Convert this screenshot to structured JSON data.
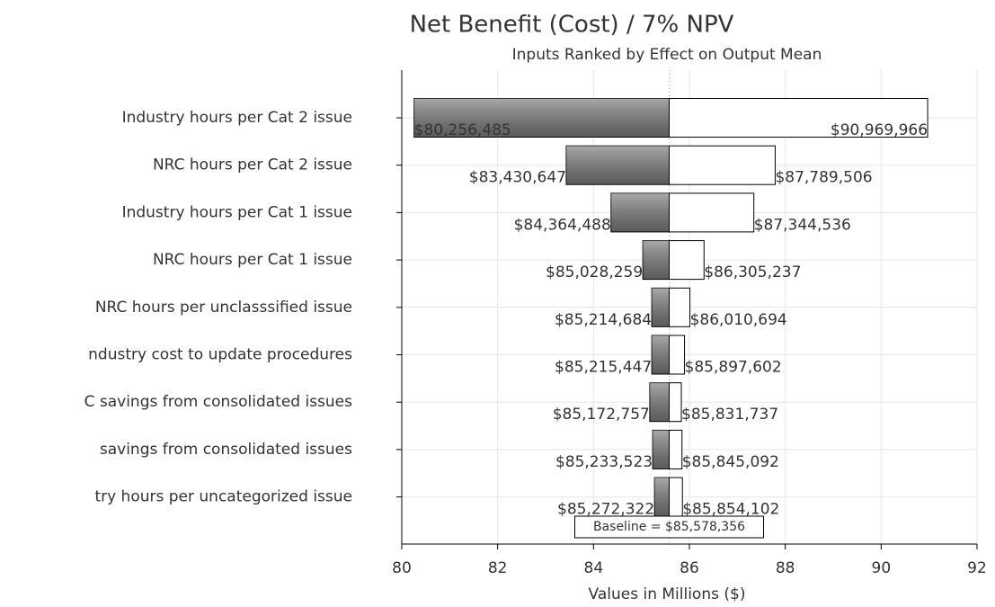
{
  "chart_data": {
    "type": "tornado",
    "title": "Net Benefit (Cost) / 7% NPV",
    "subtitle": "Inputs Ranked by Effect on Output Mean",
    "x_label": "Values in Millions ($)",
    "categories": [
      "Industry hours per Cat 2 issue",
      "NRC hours per Cat 2 issue",
      "Industry hours per Cat 1 issue",
      "NRC hours per Cat 1 issue",
      "NRC hours per unclasssified issue",
      "ndustry cost to update procedures",
      "C savings from consolidated issues",
      "savings from consolidated issues",
      "try hours per uncategorized issue"
    ],
    "low": [
      80.256485,
      83.430647,
      84.364488,
      85.028259,
      85.214684,
      85.215447,
      85.172757,
      85.233523,
      85.272322
    ],
    "low_labels": [
      "$80,256,485",
      "$83,430,647",
      "$84,364,488",
      "$85,028,259",
      "$85,214,684",
      "$85,215,447",
      "$85,172,757",
      "$85,233,523",
      "$85,272,322"
    ],
    "high": [
      90.969966,
      87.789506,
      87.344536,
      86.305237,
      86.010694,
      85.897602,
      85.831737,
      85.845092,
      85.854102
    ],
    "high_labels": [
      "$90,969,966",
      "$87,789,506",
      "$87,344,536",
      "$86,305,237",
      "$86,010,694",
      "$85,897,602",
      "$85,831,737",
      "$85,845,092",
      "$85,854,102"
    ],
    "baseline": 85.578356,
    "baseline_label": "Baseline = $85,578,356",
    "xlim": [
      80,
      92
    ],
    "xticks": [
      80,
      82,
      84,
      86,
      88,
      90,
      92
    ],
    "grid": true,
    "low_color": "#7a7a7a",
    "high_color": "#ffffff"
  }
}
